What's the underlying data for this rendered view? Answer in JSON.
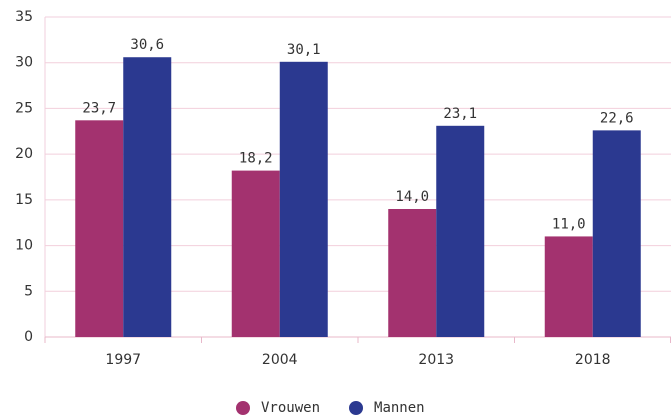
{
  "chart_data": {
    "type": "bar",
    "categories": [
      "1997",
      "2004",
      "2013",
      "2018"
    ],
    "series": [
      {
        "name": "Vrouwen",
        "color": "#a3326f",
        "values": [
          23.7,
          18.2,
          14.0,
          11.0
        ],
        "value_labels": [
          "23,7",
          "18,2",
          "14,0",
          "11,0"
        ]
      },
      {
        "name": "Mannen",
        "color": "#2b3990",
        "values": [
          30.6,
          30.1,
          23.1,
          22.6
        ],
        "value_labels": [
          "30,6",
          "30,1",
          "23,1",
          "22,6"
        ]
      }
    ],
    "ylim": [
      0,
      35
    ],
    "yticks": [
      0,
      5,
      10,
      15,
      20,
      25,
      30,
      35
    ],
    "grid": true,
    "legend": "bottom"
  }
}
